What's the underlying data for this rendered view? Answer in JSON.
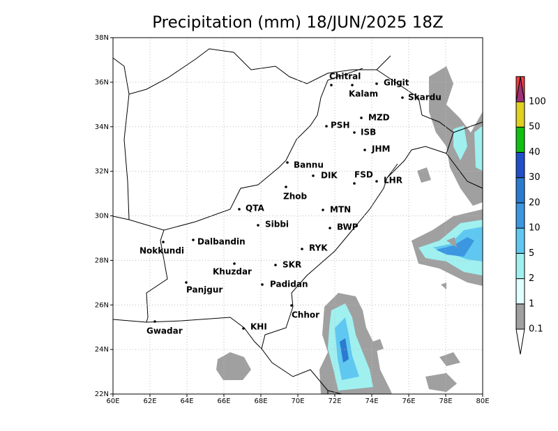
{
  "title": "Precipitation (mm) 18/JUN/2025 18Z",
  "x_ticks": [
    "60E",
    "62E",
    "64E",
    "66E",
    "68E",
    "70E",
    "72E",
    "74E",
    "76E",
    "78E",
    "80E"
  ],
  "y_ticks": [
    "22N",
    "24N",
    "26N",
    "28N",
    "30N",
    "32N",
    "34N",
    "36N",
    "38N"
  ],
  "cities": [
    "Chitral",
    "Kalam",
    "Gilgit",
    "Skardu",
    "MZD",
    "PSH",
    "ISB",
    "JHM",
    "Bannu",
    "DIK",
    "FSD",
    "LHR",
    "Zhob",
    "QTA",
    "MTN",
    "Sibbi",
    "BWP",
    "Nokkundi",
    "Dalbandin",
    "RYK",
    "Khuzdar",
    "SKR",
    "Panjgur",
    "Padidan",
    "Chhor",
    "KHI",
    "Gwadar"
  ],
  "colorbar": {
    "levels": [
      0.1,
      1,
      2,
      5,
      10,
      20,
      30,
      40,
      50,
      100
    ],
    "colors": [
      "#ffffff",
      "#a0a0a0",
      "#e0ffff",
      "#a0f0f0",
      "#60c8f0",
      "#3c96e0",
      "#2a7ad0",
      "#2050c8",
      "#10c010",
      "#e0d020",
      "#f03c3c",
      "#a0307a"
    ]
  }
}
